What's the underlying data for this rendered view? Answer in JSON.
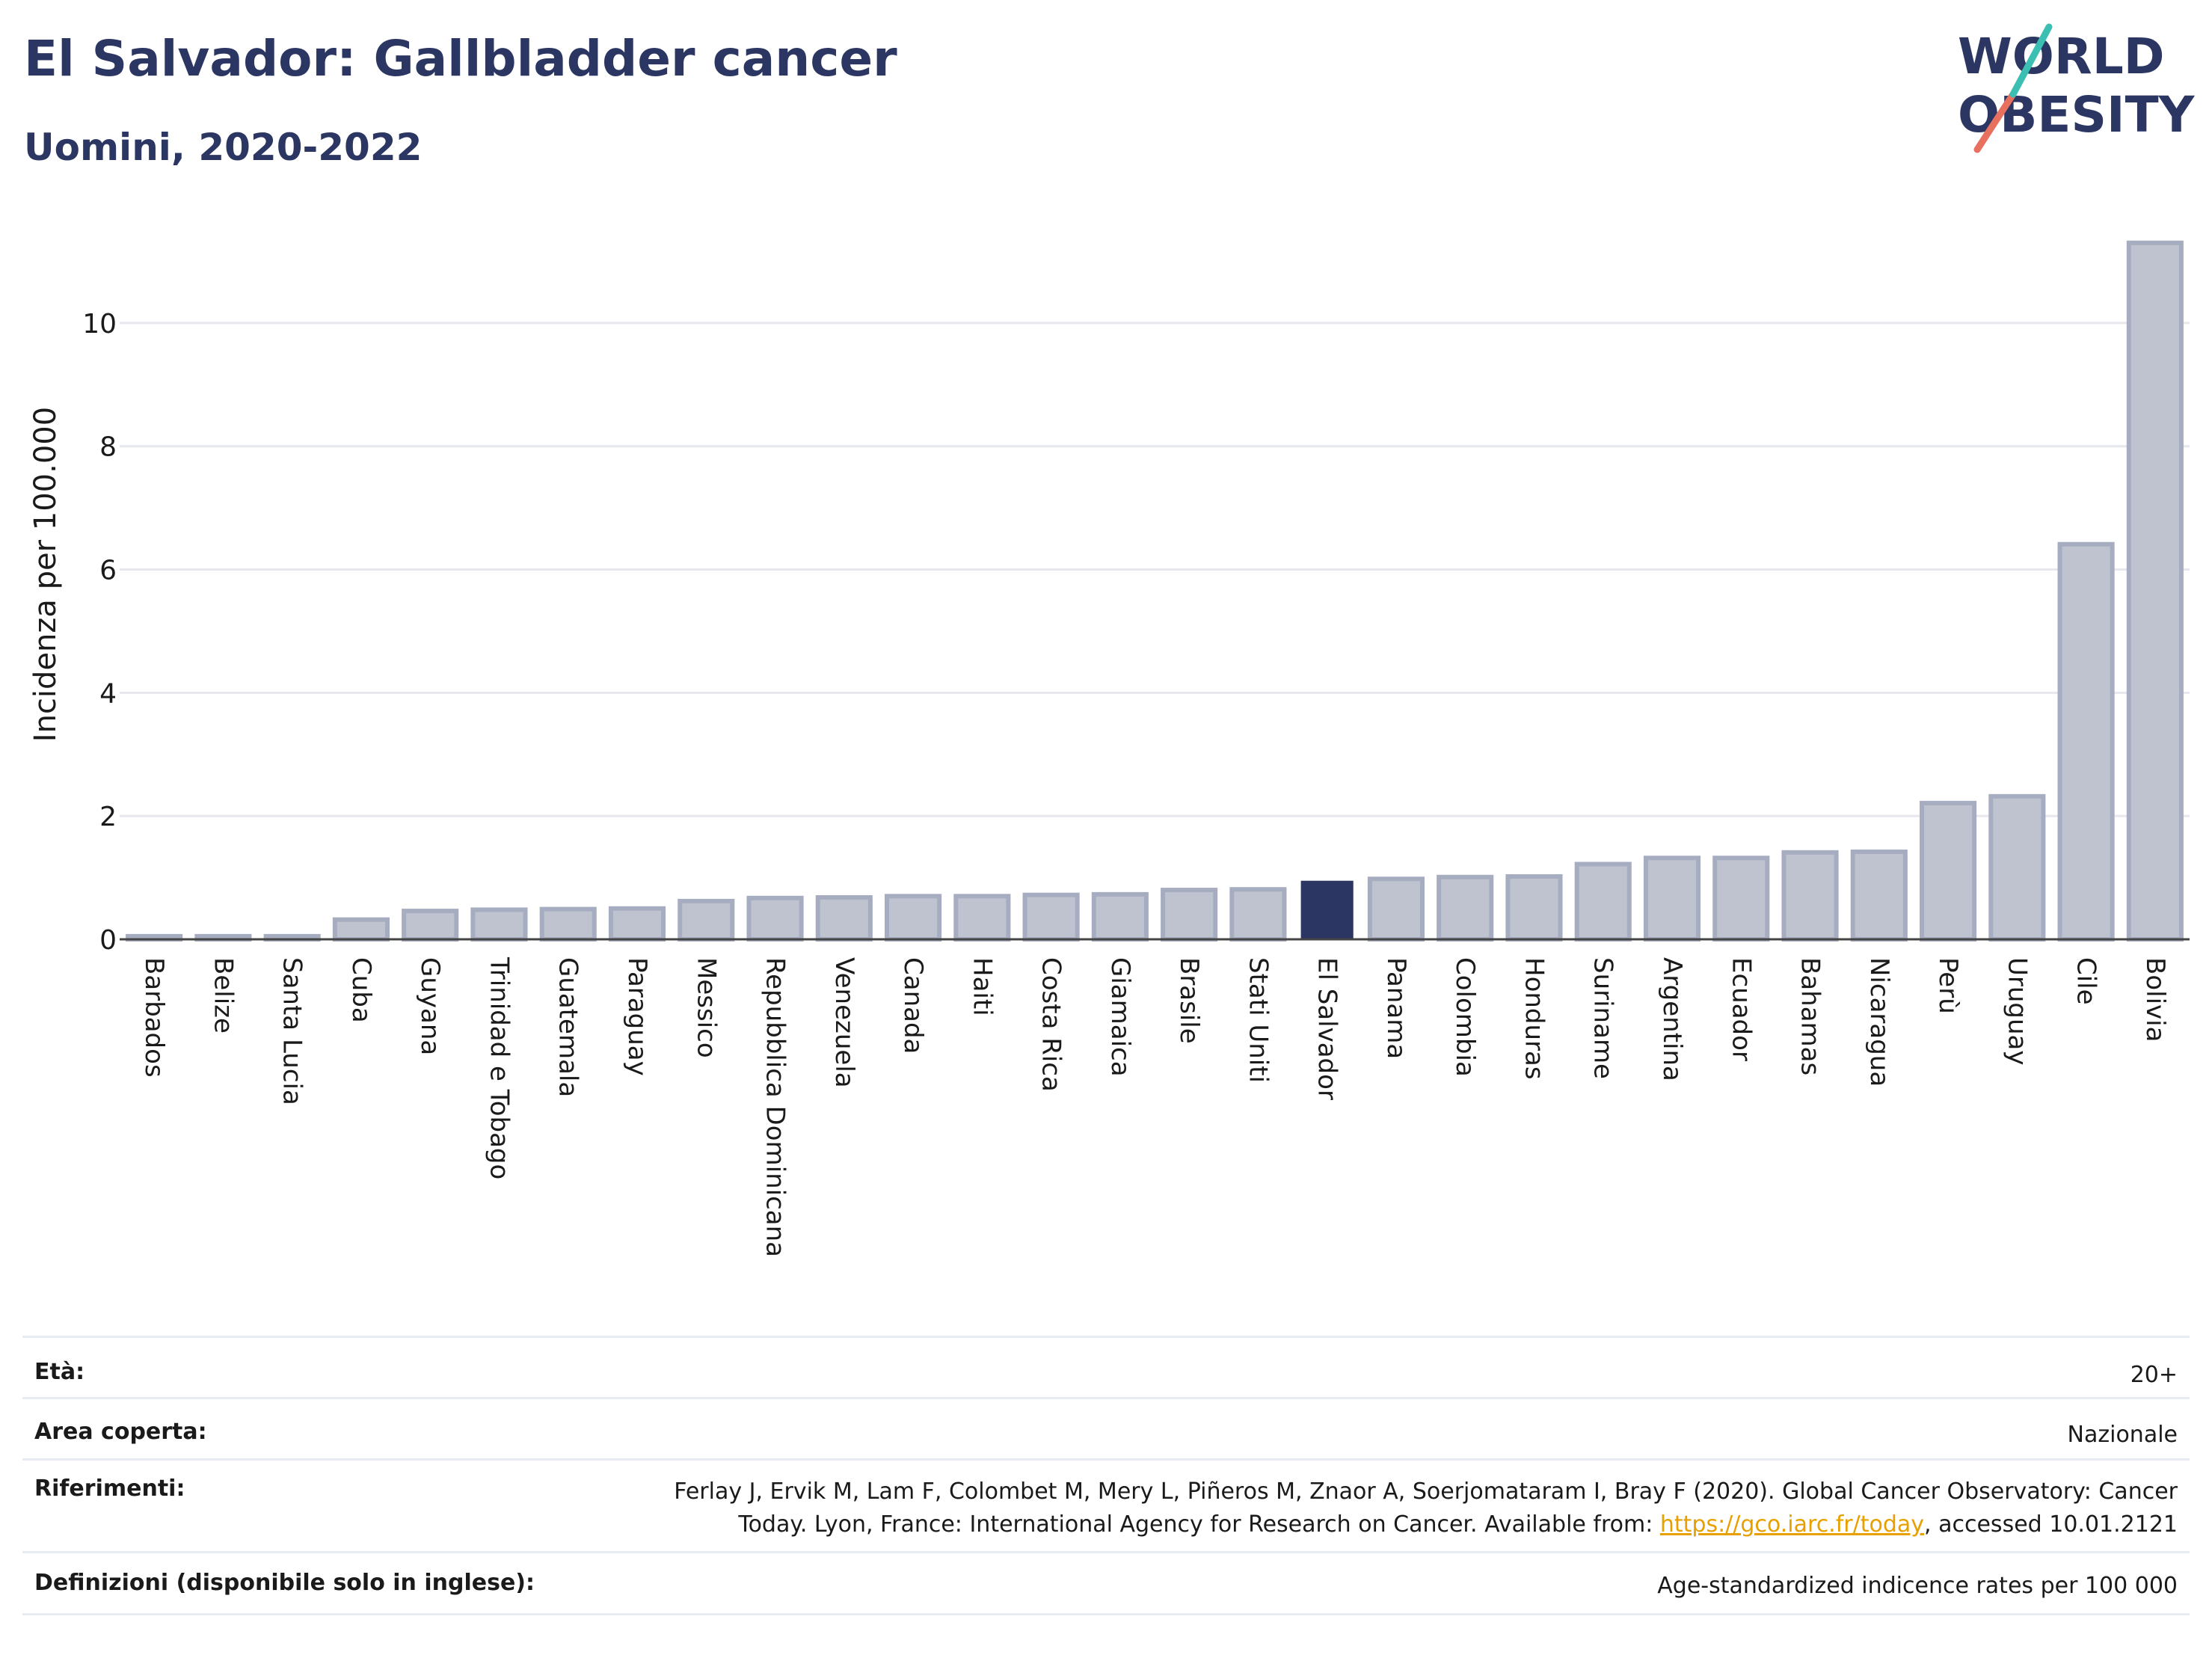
{
  "header": {
    "title": "El Salvador: Gallbladder cancer",
    "subtitle": "Uomini, 2020-2022"
  },
  "logo": {
    "line1": "WORLD",
    "line2": "OBESITY"
  },
  "colors": {
    "bar_default": "#bfc3d0",
    "bar_default_stroke": "#a7adc0",
    "bar_highlight": "#2b3662",
    "title": "#2b3662",
    "grid": "#e6e8ee",
    "link": "#e8a000",
    "logo_teal": "#3bbfb2",
    "logo_coral": "#e8705f"
  },
  "chart_data": {
    "type": "bar",
    "ylabel": "Incidenza per 100.000",
    "xlabel": "",
    "ylim": [
      0,
      11.6
    ],
    "yticks": [
      0,
      2,
      4,
      6,
      8,
      10
    ],
    "grid": true,
    "highlight": "El Salvador",
    "categories": [
      "Barbados",
      "Belize",
      "Santa Lucia",
      "Cuba",
      "Guyana",
      "Trinidad e Tobago",
      "Guatemala",
      "Paraguay",
      "Messico",
      "Repubblica Dominicana",
      "Venezuela",
      "Canada",
      "Haiti",
      "Costa Rica",
      "Giamaica",
      "Brasile",
      "Stati Uniti",
      "El Salvador",
      "Panama",
      "Colombia",
      "Honduras",
      "Suriname",
      "Argentina",
      "Ecuador",
      "Bahamas",
      "Nicaragua",
      "Perù",
      "Uruguay",
      "Cile",
      "Bolivia"
    ],
    "values": [
      0.05,
      0.05,
      0.05,
      0.32,
      0.46,
      0.48,
      0.49,
      0.5,
      0.62,
      0.67,
      0.68,
      0.7,
      0.7,
      0.72,
      0.73,
      0.8,
      0.81,
      0.95,
      0.98,
      1.01,
      1.02,
      1.22,
      1.32,
      1.32,
      1.41,
      1.42,
      2.21,
      2.32,
      6.41,
      11.3
    ]
  },
  "info": {
    "eta_label": "Età:",
    "eta_value": "20+",
    "area_label": "Area coperta:",
    "area_value": "Nazionale",
    "rif_label": "Riferimenti:",
    "rif_line1": "Ferlay J, Ervik M, Lam F, Colombet M, Mery L, Piñeros M, Znaor A, Soerjomataram I, Bray F (2020). Global Cancer Observatory: Cancer",
    "rif_line2_pre": "Today. Lyon, France: International Agency for Research on Cancer. Available from: ",
    "rif_link": "https://gco.iarc.fr/today",
    "rif_line2_post": ", accessed 10.01.2121",
    "def_label": "Definizioni (disponibile solo in inglese):",
    "def_value": "Age-standardized indicence rates per 100 000"
  }
}
